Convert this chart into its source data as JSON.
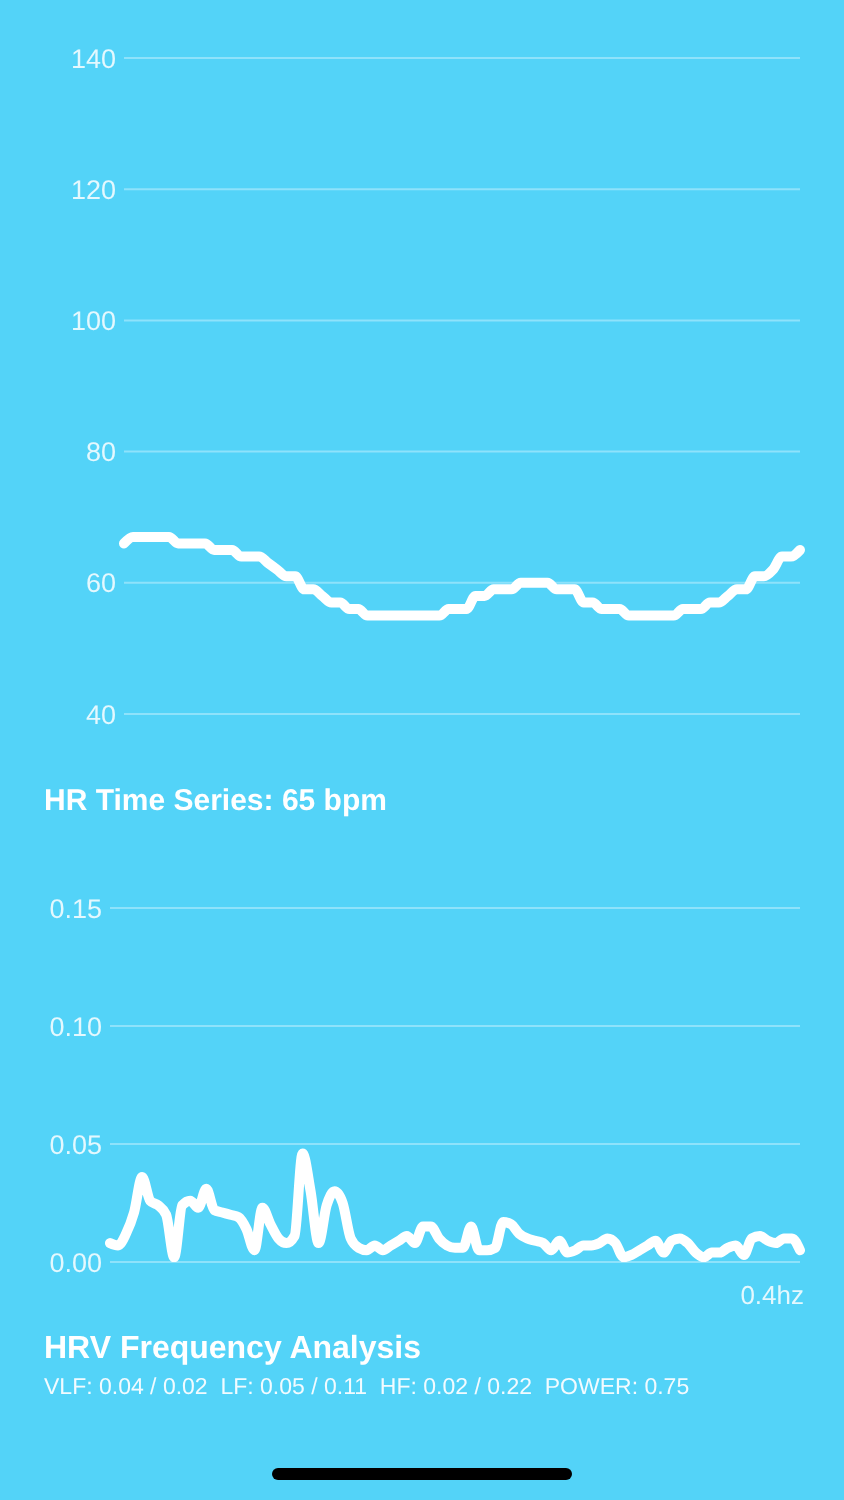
{
  "chart_data": [
    {
      "type": "line",
      "title": "HR Time Series: 65 bpm",
      "categories": [
        null,
        null,
        null,
        null,
        null,
        null,
        null,
        null,
        null,
        null,
        null,
        null,
        null,
        null,
        null,
        null,
        null,
        null,
        null,
        null,
        null,
        null,
        null,
        null,
        null,
        null,
        null,
        null,
        null,
        null,
        null,
        null,
        null,
        null,
        null,
        null,
        null,
        null,
        null,
        null,
        null,
        null,
        null,
        null,
        null,
        null,
        null,
        null,
        null,
        null,
        null,
        null,
        null,
        null,
        null,
        null,
        null,
        null,
        null,
        null,
        null,
        null,
        null,
        null,
        null,
        null,
        null,
        null,
        null,
        null,
        null,
        null,
        null,
        null,
        null,
        null
      ],
      "series": [
        {
          "color": "#ffffff",
          "values": [
            66,
            67,
            67,
            67,
            67,
            67,
            66,
            66,
            66,
            66,
            65,
            65,
            65,
            64,
            64,
            64,
            63,
            62,
            61,
            61,
            59,
            59,
            58,
            57,
            57,
            56,
            56,
            55,
            55,
            55,
            55,
            55,
            55,
            55,
            55,
            55,
            56,
            56,
            56,
            58,
            58,
            59,
            59,
            59,
            60,
            60,
            60,
            60,
            59,
            59,
            59,
            57,
            57,
            56,
            56,
            56,
            55,
            55,
            55,
            55,
            55,
            55,
            56,
            56,
            56,
            57,
            57,
            58,
            59,
            59,
            61,
            61,
            62,
            64,
            64,
            65
          ]
        }
      ],
      "ylim": [
        40,
        140
      ],
      "yticks": [
        40,
        60,
        80,
        100,
        120,
        140
      ],
      "grid": "y",
      "tick_labels": "y"
    },
    {
      "type": "line",
      "title": "HRV Frequency Analysis",
      "subtitle": "VLF: 0.04 / 0.02  LF: 0.05 / 0.11  HF: 0.02 / 0.22  POWER: 0.75",
      "xlabel": "0.4hz",
      "categories": [
        null,
        null,
        null,
        null,
        null,
        null,
        null,
        null,
        null,
        null,
        null,
        null,
        null,
        null,
        null,
        null,
        null,
        null,
        null,
        null,
        null,
        null,
        null,
        null,
        null,
        null,
        null,
        null,
        null,
        null,
        null,
        null,
        null,
        null,
        null,
        null,
        null,
        null,
        null,
        null,
        null,
        null,
        null,
        null,
        null,
        null,
        null,
        null,
        null,
        null,
        null,
        null,
        null,
        null,
        null,
        null,
        null,
        null,
        null,
        null,
        null,
        null,
        null,
        null,
        null,
        null,
        null,
        null,
        null,
        null,
        null,
        null,
        null,
        null,
        null,
        null,
        null,
        null,
        null,
        null,
        null,
        null,
        null,
        null,
        null,
        null,
        null
      ],
      "series": [
        {
          "color": "#ffffff",
          "values": [
            0.008,
            0.007,
            0.012,
            0.021,
            0.036,
            0.026,
            0.024,
            0.02,
            0.002,
            0.024,
            0.026,
            0.023,
            0.031,
            0.022,
            0.021,
            0.02,
            0.019,
            0.014,
            0.005,
            0.023,
            0.016,
            0.01,
            0.008,
            0.011,
            0.046,
            0.03,
            0.008,
            0.024,
            0.03,
            0.025,
            0.01,
            0.006,
            0.005,
            0.007,
            0.005,
            0.007,
            0.009,
            0.011,
            0.008,
            0.015,
            0.015,
            0.01,
            0.007,
            0.006,
            0.006,
            0.015,
            0.005,
            0.005,
            0.006,
            0.017,
            0.016,
            0.012,
            0.01,
            0.009,
            0.008,
            0.005,
            0.009,
            0.004,
            0.005,
            0.007,
            0.007,
            0.008,
            0.01,
            0.008,
            0.002,
            0.003,
            0.005,
            0.007,
            0.009,
            0.004,
            0.009,
            0.01,
            0.008,
            0.004,
            0.002,
            0.004,
            0.004,
            0.006,
            0.007,
            0.003,
            0.01,
            0.011,
            0.009,
            0.008,
            0.01,
            0.01,
            0.005
          ]
        }
      ],
      "ylim": [
        0,
        0.15
      ],
      "yticks": [
        {
          "value": 0,
          "label": "0.00"
        },
        {
          "value": 0.05,
          "label": "0.05"
        },
        {
          "value": 0.1,
          "label": "0.10"
        },
        {
          "value": 0.15,
          "label": "0.15"
        }
      ],
      "grid": "y",
      "tick_labels": "y"
    }
  ]
}
